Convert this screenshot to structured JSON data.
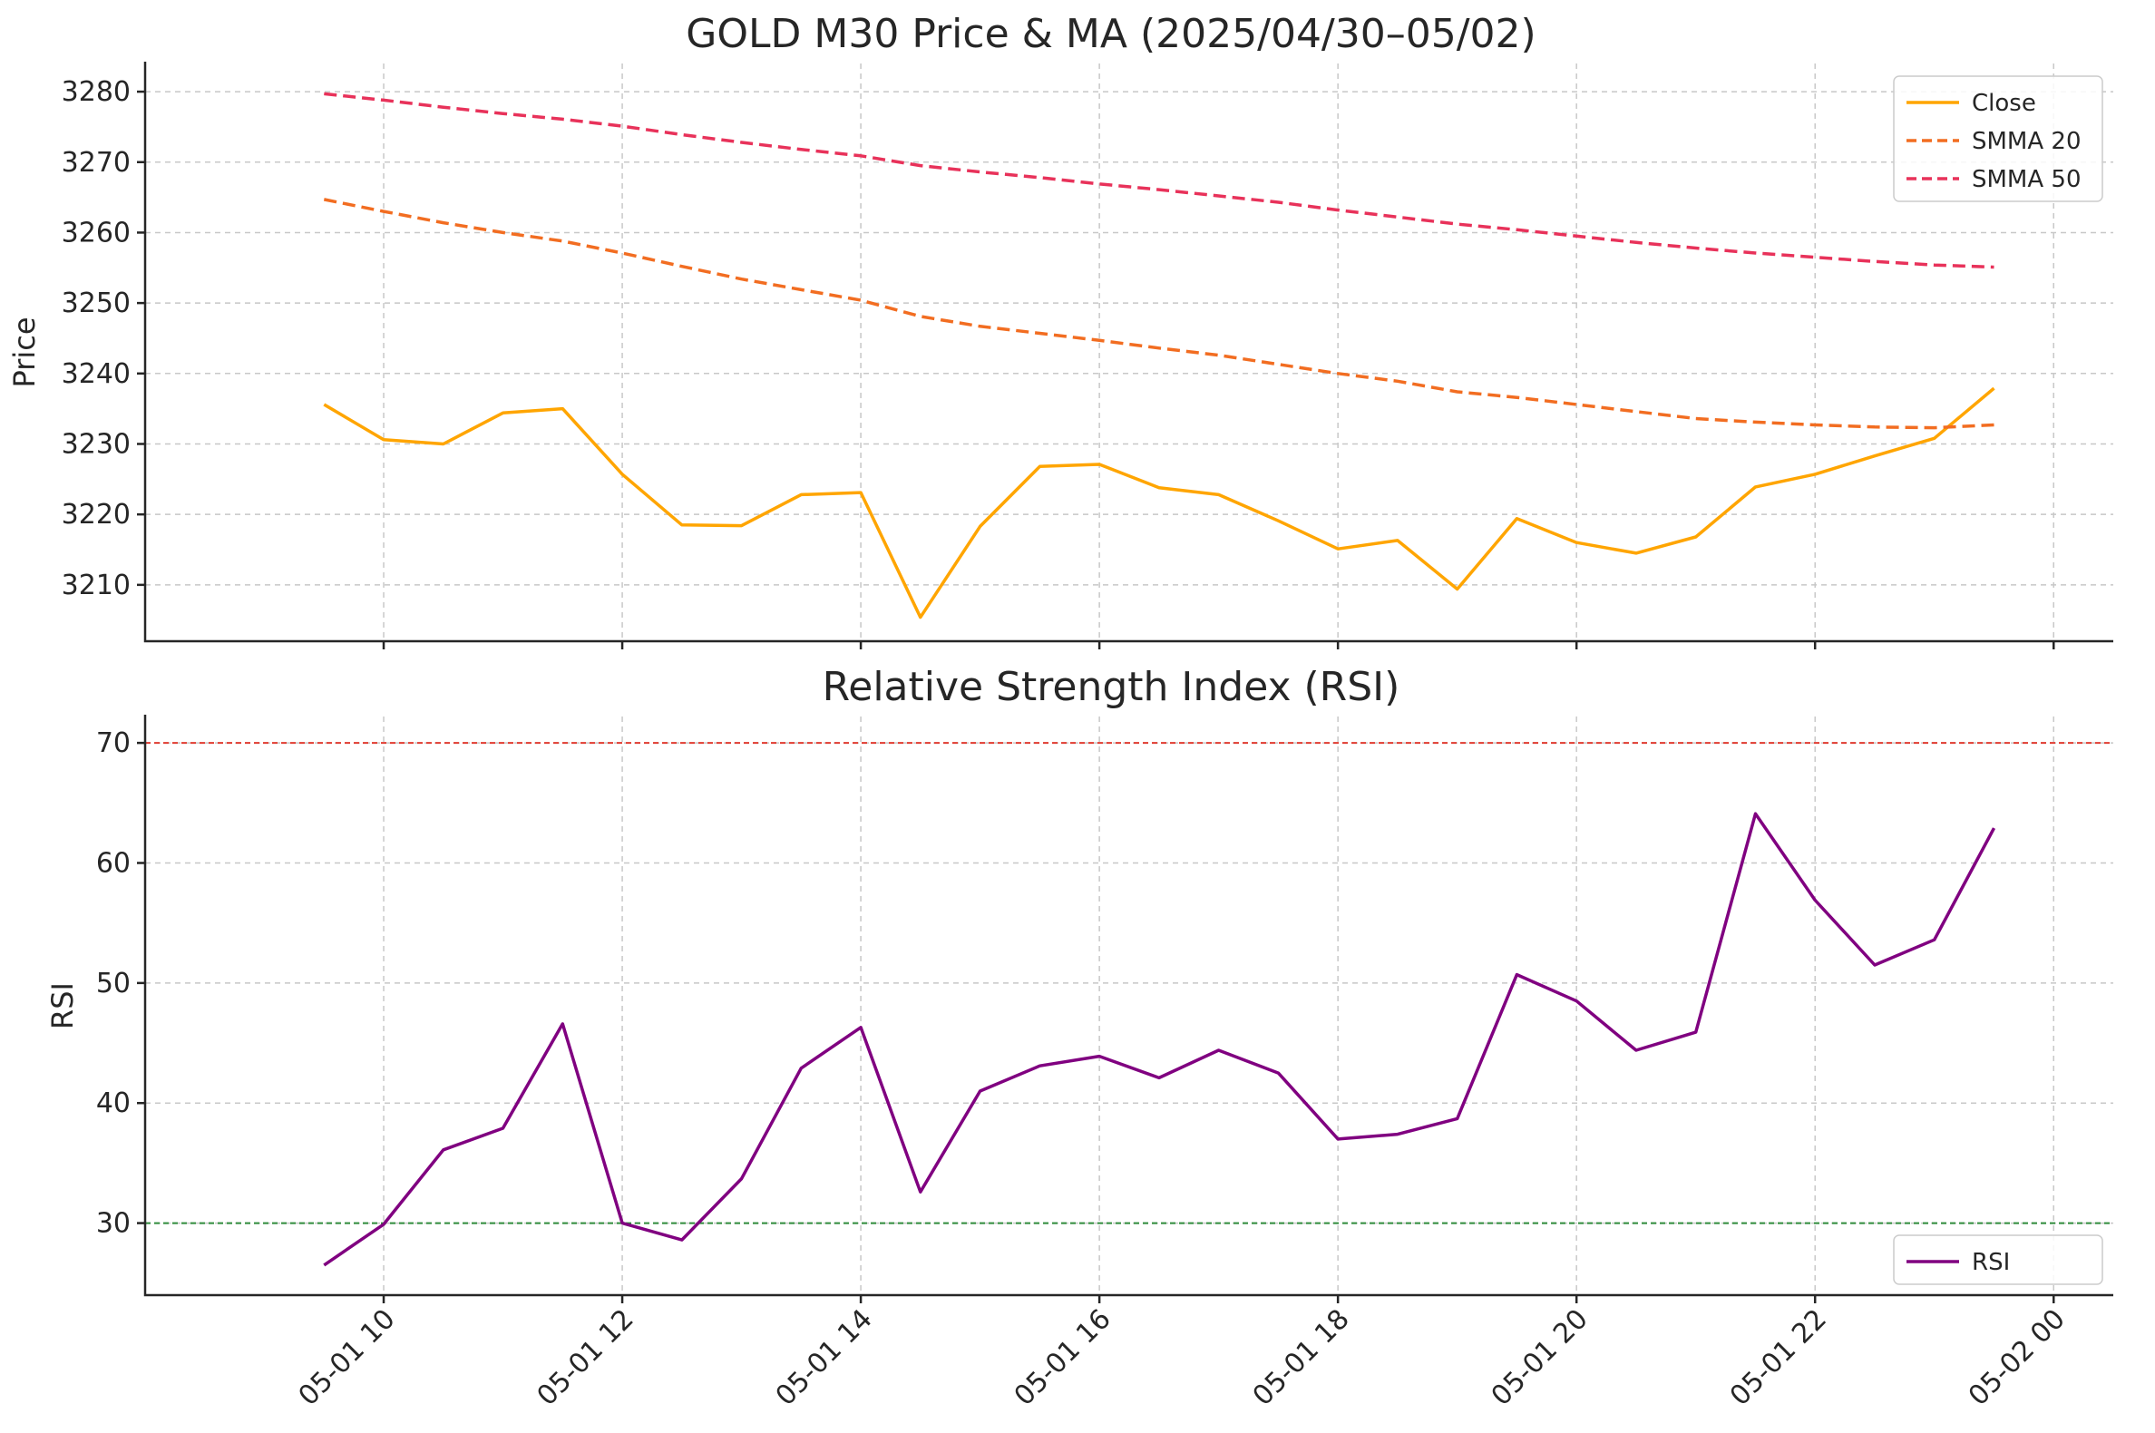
{
  "chart_data": [
    {
      "type": "line",
      "title": "GOLD M30 Price & MA (2025/04/30–05/02)",
      "ylabel": "Price",
      "xlabel": "",
      "ylim": [
        3202,
        3284
      ],
      "yticks": [
        3210,
        3220,
        3230,
        3240,
        3250,
        3260,
        3270,
        3280
      ],
      "xlim_hours": [
        8.0,
        24.5
      ],
      "grid": true,
      "legend_position": "top-right",
      "series": [
        {
          "name": "Close",
          "color": "#FFA500",
          "style": "solid",
          "x": [
            9.5,
            10.0,
            10.5,
            11.0,
            11.5,
            12.0,
            12.5,
            13.0,
            13.5,
            14.0,
            14.5,
            15.0,
            15.5,
            16.0,
            16.5,
            17.0,
            17.5,
            18.0,
            18.5,
            19.0,
            19.5,
            20.0,
            20.5,
            21.0,
            21.5,
            22.0,
            22.5,
            23.0,
            23.5
          ],
          "values": [
            3235.6,
            3230.6,
            3230.0,
            3234.4,
            3235.0,
            3225.7,
            3218.5,
            3218.4,
            3222.8,
            3223.1,
            3205.4,
            3218.3,
            3226.8,
            3227.1,
            3223.8,
            3222.8,
            3219.1,
            3215.1,
            3216.3,
            3209.4,
            3219.4,
            3216.0,
            3214.5,
            3216.8,
            3223.9,
            3225.7,
            3228.3,
            3230.8,
            3237.9
          ]
        },
        {
          "name": "SMMA 20",
          "color": "#F26D21",
          "style": "dashed",
          "x": [
            9.5,
            10.0,
            10.5,
            11.0,
            11.5,
            12.0,
            12.5,
            13.0,
            13.5,
            14.0,
            14.5,
            15.0,
            15.5,
            16.0,
            16.5,
            17.0,
            17.5,
            18.0,
            18.5,
            19.0,
            19.5,
            20.0,
            20.5,
            21.0,
            21.5,
            22.0,
            22.5,
            23.0,
            23.5
          ],
          "values": [
            3264.7,
            3263.0,
            3261.4,
            3260.0,
            3258.8,
            3257.1,
            3255.2,
            3253.4,
            3251.9,
            3250.4,
            3248.1,
            3246.7,
            3245.7,
            3244.7,
            3243.6,
            3242.6,
            3241.3,
            3240.0,
            3238.9,
            3237.4,
            3236.6,
            3235.6,
            3234.6,
            3233.6,
            3233.1,
            3232.7,
            3232.4,
            3232.3,
            3232.7
          ]
        },
        {
          "name": "SMMA 50",
          "color": "#E8325A",
          "style": "dashed",
          "x": [
            9.5,
            10.0,
            10.5,
            11.0,
            11.5,
            12.0,
            12.5,
            13.0,
            13.5,
            14.0,
            14.5,
            15.0,
            15.5,
            16.0,
            16.5,
            17.0,
            17.5,
            18.0,
            18.5,
            19.0,
            19.5,
            20.0,
            20.5,
            21.0,
            21.5,
            22.0,
            22.5,
            23.0,
            23.5
          ],
          "values": [
            3279.7,
            3278.8,
            3277.8,
            3276.9,
            3276.1,
            3275.1,
            3273.9,
            3272.8,
            3271.8,
            3270.9,
            3269.5,
            3268.6,
            3267.8,
            3266.9,
            3266.1,
            3265.2,
            3264.3,
            3263.2,
            3262.2,
            3261.2,
            3260.4,
            3259.5,
            3258.6,
            3257.8,
            3257.1,
            3256.5,
            3255.9,
            3255.4,
            3255.1
          ]
        }
      ]
    },
    {
      "type": "line",
      "title": "Relative Strength Index (RSI)",
      "ylabel": "RSI",
      "xlabel": "",
      "ylim": [
        24,
        72.2
      ],
      "yticks": [
        30,
        40,
        50,
        60,
        70
      ],
      "xlim_hours": [
        8.0,
        24.5
      ],
      "xticks": [
        {
          "hour": 10,
          "label": "05-01 10"
        },
        {
          "hour": 12,
          "label": "05-01 12"
        },
        {
          "hour": 14,
          "label": "05-01 14"
        },
        {
          "hour": 16,
          "label": "05-01 16"
        },
        {
          "hour": 18,
          "label": "05-01 18"
        },
        {
          "hour": 20,
          "label": "05-01 20"
        },
        {
          "hour": 22,
          "label": "05-01 22"
        },
        {
          "hour": 24,
          "label": "05-02 00"
        }
      ],
      "grid": true,
      "legend_position": "bottom-right",
      "reference_lines": [
        {
          "value": 70,
          "color": "#E03C31"
        },
        {
          "value": 30,
          "color": "#2E8B3A"
        }
      ],
      "series": [
        {
          "name": "RSI",
          "color": "#800080",
          "style": "solid",
          "x": [
            9.5,
            10.0,
            10.5,
            11.0,
            11.5,
            12.0,
            12.5,
            13.0,
            13.5,
            14.0,
            14.5,
            15.0,
            15.5,
            16.0,
            16.5,
            17.0,
            17.5,
            18.0,
            18.5,
            19.0,
            19.5,
            20.0,
            20.5,
            21.0,
            21.5,
            22.0,
            22.5,
            23.0,
            23.5
          ],
          "values": [
            26.5,
            29.9,
            36.1,
            37.9,
            46.6,
            30.0,
            28.6,
            33.7,
            42.9,
            46.3,
            32.6,
            41.0,
            43.1,
            43.9,
            42.1,
            44.4,
            42.5,
            37.0,
            37.4,
            38.7,
            50.7,
            48.5,
            44.4,
            45.9,
            64.1,
            56.9,
            51.5,
            53.6,
            62.9
          ]
        }
      ]
    }
  ]
}
